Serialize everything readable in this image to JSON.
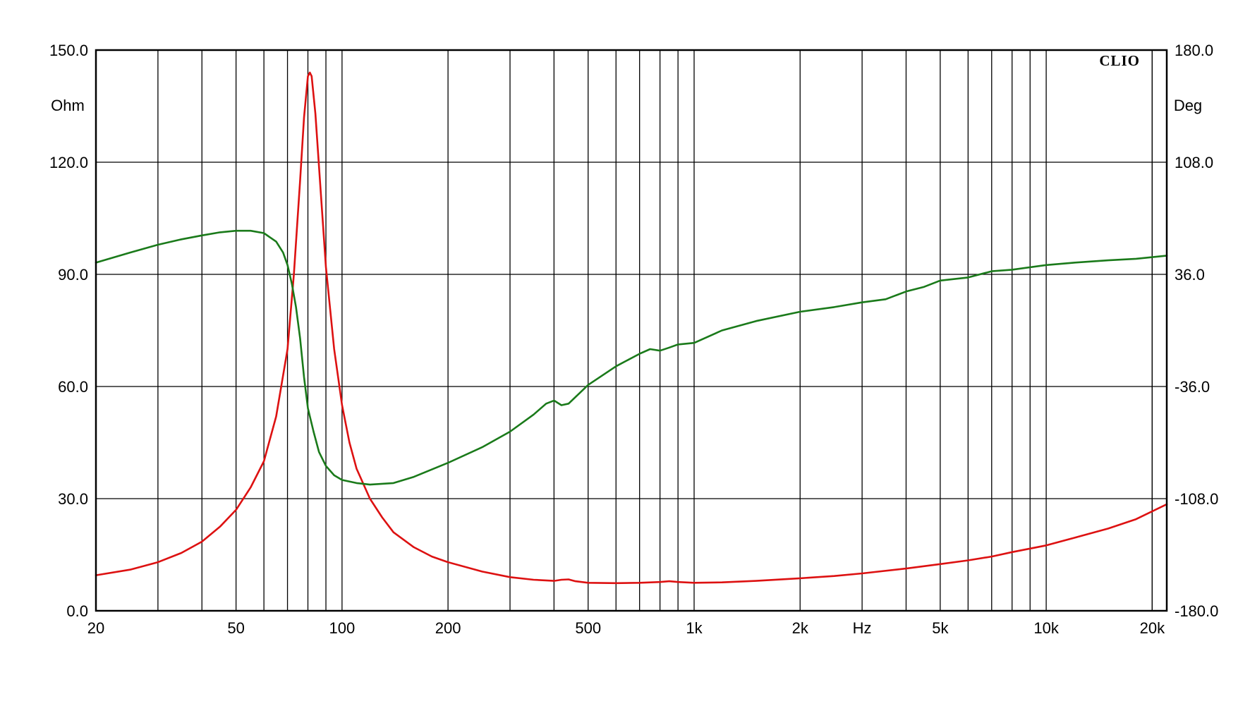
{
  "chart_data": {
    "type": "line",
    "brand": "CLIO",
    "xlabel": "Hz",
    "ylabel_left": "Ohm",
    "ylabel_right": "Deg",
    "x_scale": "log",
    "xlim": [
      20,
      22000
    ],
    "ylim_left": [
      0,
      150
    ],
    "ylim_right": [
      -180,
      180
    ],
    "grid": true,
    "x_ticks": [
      {
        "value": 20,
        "label": "20"
      },
      {
        "value": 50,
        "label": "50"
      },
      {
        "value": 100,
        "label": "100"
      },
      {
        "value": 200,
        "label": "200"
      },
      {
        "value": 500,
        "label": "500"
      },
      {
        "value": 1000,
        "label": "1k"
      },
      {
        "value": 2000,
        "label": "2k"
      },
      {
        "value": 5000,
        "label": "5k"
      },
      {
        "value": 10000,
        "label": "10k"
      },
      {
        "value": 20000,
        "label": "20k"
      }
    ],
    "y_left_ticks": [
      {
        "value": 150,
        "label": "150.0"
      },
      {
        "value": 120,
        "label": "120.0"
      },
      {
        "value": 90,
        "label": "90.0"
      },
      {
        "value": 60,
        "label": "60.0"
      },
      {
        "value": 30,
        "label": "30.0"
      },
      {
        "value": 0,
        "label": "0.0"
      }
    ],
    "y_right_ticks": [
      {
        "value": 180,
        "label": "180.0"
      },
      {
        "value": 108,
        "label": "108.0"
      },
      {
        "value": 36,
        "label": "36.0"
      },
      {
        "value": -36,
        "label": "-36.0"
      },
      {
        "value": -108,
        "label": "-108.0"
      },
      {
        "value": -180,
        "label": "-180.0"
      }
    ],
    "series": [
      {
        "key": "impedance",
        "axis": "left",
        "color": "#dd1111",
        "points": [
          [
            20,
            9.5
          ],
          [
            25,
            11
          ],
          [
            30,
            13
          ],
          [
            35,
            15.5
          ],
          [
            40,
            18.5
          ],
          [
            45,
            22.5
          ],
          [
            50,
            27
          ],
          [
            55,
            33
          ],
          [
            60,
            40
          ],
          [
            65,
            52
          ],
          [
            70,
            70
          ],
          [
            73,
            90
          ],
          [
            76,
            115
          ],
          [
            78,
            132
          ],
          [
            80,
            143
          ],
          [
            81,
            144
          ],
          [
            82,
            143
          ],
          [
            84,
            133
          ],
          [
            87,
            112
          ],
          [
            90,
            92
          ],
          [
            95,
            70
          ],
          [
            100,
            55
          ],
          [
            105,
            45
          ],
          [
            110,
            38
          ],
          [
            120,
            30
          ],
          [
            130,
            25
          ],
          [
            140,
            21
          ],
          [
            160,
            17
          ],
          [
            180,
            14.5
          ],
          [
            200,
            13
          ],
          [
            250,
            10.5
          ],
          [
            300,
            9
          ],
          [
            350,
            8.3
          ],
          [
            400,
            8
          ],
          [
            420,
            8.3
          ],
          [
            440,
            8.4
          ],
          [
            460,
            7.9
          ],
          [
            500,
            7.5
          ],
          [
            600,
            7.4
          ],
          [
            700,
            7.5
          ],
          [
            800,
            7.7
          ],
          [
            850,
            7.9
          ],
          [
            900,
            7.7
          ],
          [
            1000,
            7.5
          ],
          [
            1200,
            7.6
          ],
          [
            1500,
            8
          ],
          [
            2000,
            8.7
          ],
          [
            2500,
            9.3
          ],
          [
            3000,
            10
          ],
          [
            4000,
            11.3
          ],
          [
            5000,
            12.5
          ],
          [
            6000,
            13.5
          ],
          [
            7000,
            14.5
          ],
          [
            8000,
            15.7
          ],
          [
            10000,
            17.5
          ],
          [
            12000,
            19.5
          ],
          [
            15000,
            22
          ],
          [
            18000,
            24.5
          ],
          [
            22000,
            28.5
          ]
        ]
      },
      {
        "key": "phase",
        "axis": "right",
        "color": "#1a7a1a",
        "points": [
          [
            20,
            43.5
          ],
          [
            25,
            50
          ],
          [
            30,
            55
          ],
          [
            35,
            58.5
          ],
          [
            40,
            61
          ],
          [
            45,
            63
          ],
          [
            50,
            64
          ],
          [
            55,
            64
          ],
          [
            60,
            62.5
          ],
          [
            65,
            57
          ],
          [
            68,
            50
          ],
          [
            70,
            42
          ],
          [
            72,
            30
          ],
          [
            74,
            15
          ],
          [
            76,
            -5
          ],
          [
            78,
            -30
          ],
          [
            80,
            -50
          ],
          [
            83,
            -65
          ],
          [
            86,
            -78
          ],
          [
            90,
            -87
          ],
          [
            95,
            -93
          ],
          [
            100,
            -96
          ],
          [
            110,
            -98
          ],
          [
            120,
            -99
          ],
          [
            140,
            -98
          ],
          [
            160,
            -94
          ],
          [
            200,
            -85
          ],
          [
            250,
            -75
          ],
          [
            300,
            -65
          ],
          [
            350,
            -54
          ],
          [
            380,
            -47
          ],
          [
            400,
            -45
          ],
          [
            420,
            -48
          ],
          [
            440,
            -47
          ],
          [
            500,
            -35
          ],
          [
            600,
            -23
          ],
          [
            700,
            -15
          ],
          [
            750,
            -12
          ],
          [
            800,
            -13
          ],
          [
            850,
            -11
          ],
          [
            900,
            -9
          ],
          [
            1000,
            -8
          ],
          [
            1200,
            0
          ],
          [
            1500,
            6
          ],
          [
            2000,
            12
          ],
          [
            2500,
            15
          ],
          [
            3000,
            18
          ],
          [
            3500,
            20
          ],
          [
            4000,
            25
          ],
          [
            4500,
            28
          ],
          [
            5000,
            32
          ],
          [
            6000,
            34
          ],
          [
            7000,
            38
          ],
          [
            8000,
            39
          ],
          [
            10000,
            42
          ],
          [
            12000,
            43.5
          ],
          [
            15000,
            45
          ],
          [
            18000,
            46
          ],
          [
            22000,
            48
          ]
        ]
      }
    ]
  }
}
